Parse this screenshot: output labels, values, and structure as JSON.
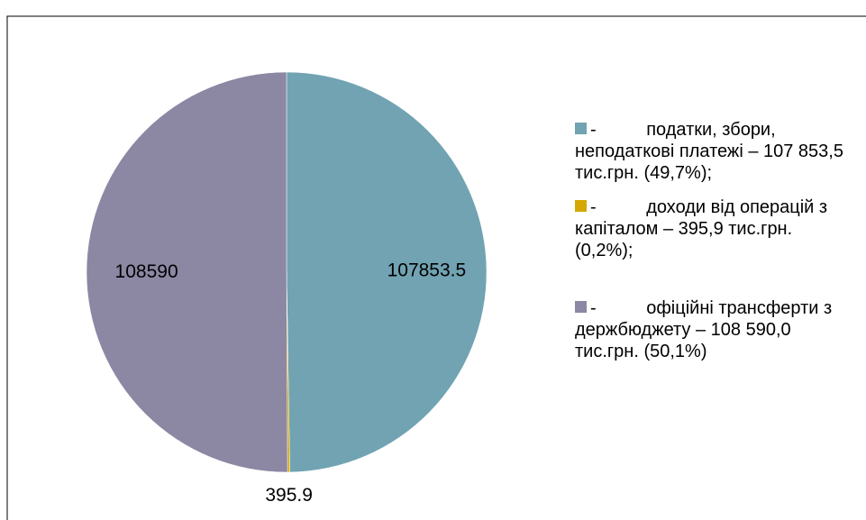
{
  "chart_data": {
    "type": "pie",
    "categories": [
      "-          податки, збори, неподаткові платежі – 107 853,5 тис.грн. (49,7%);",
      "-          доходи від операцій з капіталом – 395,9 тис.грн. (0,2%);",
      "-          офіційні трансферти з держбюджету – 108 590,0 тис.грн. (50,1%)"
    ],
    "values": [
      107853.5,
      395.9,
      108590
    ],
    "colors": [
      "#71a3b2",
      "#d4a800",
      "#8c87a3"
    ]
  }
}
